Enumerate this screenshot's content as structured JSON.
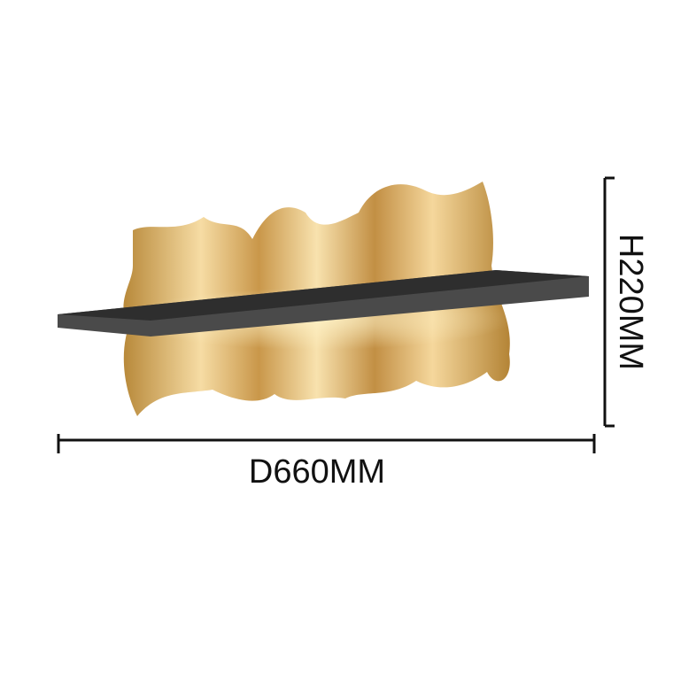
{
  "dimensions": {
    "width_label": "D660MM",
    "height_label": "H220MM"
  }
}
